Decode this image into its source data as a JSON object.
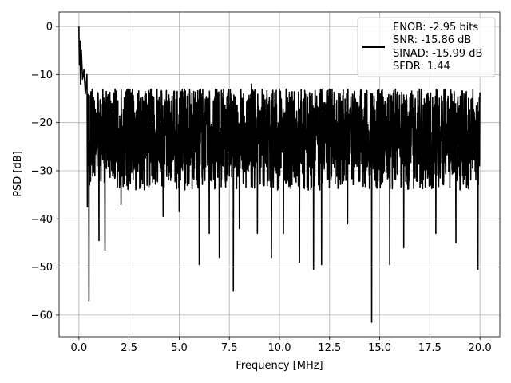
{
  "chart_data": {
    "type": "line",
    "title": "",
    "xlabel": "Frequency [MHz]",
    "ylabel": "PSD [dB]",
    "xlim": [
      -0.99,
      20.99
    ],
    "ylim": [
      -64.5,
      3.0
    ],
    "grid": true,
    "xticks": [
      0.0,
      2.5,
      5.0,
      7.5,
      10.0,
      12.5,
      15.0,
      17.5,
      20.0
    ],
    "xtick_labels": [
      "0.0",
      "2.5",
      "5.0",
      "7.5",
      "10.0",
      "12.5",
      "15.0",
      "17.5",
      "20.0"
    ],
    "yticks": [
      0,
      -10,
      -20,
      -30,
      -40,
      -50,
      -60
    ],
    "ytick_labels": [
      "0",
      "−10",
      "−20",
      "−30",
      "−40",
      "−50",
      "−60"
    ],
    "legend_position": "top-right",
    "legend_lines": [
      "ENOB: -2.95 bits",
      "SNR: -15.86 dB",
      "SINAD: -15.99 dB",
      "SFDR: 1.44"
    ],
    "series": [
      {
        "color": "#000000",
        "x_range": [
          0.0,
          20.0
        ],
        "noise_band": {
          "min": -34,
          "max": -13,
          "mean": -24
        },
        "start_peak": [
          {
            "x": 0.0,
            "y": 0.0
          },
          {
            "x": 0.02,
            "y": -8.0
          },
          {
            "x": 0.05,
            "y": -3.0
          },
          {
            "x": 0.08,
            "y": -12.0
          },
          {
            "x": 0.12,
            "y": -5.0
          },
          {
            "x": 0.18,
            "y": -11.0
          },
          {
            "x": 0.25,
            "y": -9.0
          },
          {
            "x": 0.32,
            "y": -14.0
          },
          {
            "x": 0.4,
            "y": -10.0
          }
        ],
        "notable_dips": [
          {
            "x": 0.5,
            "y": -57.0
          },
          {
            "x": 0.42,
            "y": -37.5
          },
          {
            "x": 1.0,
            "y": -44.5
          },
          {
            "x": 1.3,
            "y": -46.5
          },
          {
            "x": 2.1,
            "y": -37.0
          },
          {
            "x": 4.2,
            "y": -39.5
          },
          {
            "x": 5.0,
            "y": -38.5
          },
          {
            "x": 6.0,
            "y": -49.5
          },
          {
            "x": 6.5,
            "y": -43.0
          },
          {
            "x": 7.0,
            "y": -48.0
          },
          {
            "x": 7.7,
            "y": -55.0
          },
          {
            "x": 8.0,
            "y": -42.0
          },
          {
            "x": 8.9,
            "y": -43.0
          },
          {
            "x": 9.6,
            "y": -48.0
          },
          {
            "x": 10.2,
            "y": -43.0
          },
          {
            "x": 11.0,
            "y": -49.0
          },
          {
            "x": 11.7,
            "y": -50.5
          },
          {
            "x": 12.1,
            "y": -49.5
          },
          {
            "x": 13.4,
            "y": -41.0
          },
          {
            "x": 14.6,
            "y": -61.5
          },
          {
            "x": 15.5,
            "y": -49.5
          },
          {
            "x": 16.2,
            "y": -46.0
          },
          {
            "x": 17.8,
            "y": -43.0
          },
          {
            "x": 18.8,
            "y": -45.0
          },
          {
            "x": 19.9,
            "y": -50.5
          }
        ],
        "notable_peaks": [
          {
            "x": 1.8,
            "y": -13.0
          },
          {
            "x": 3.3,
            "y": -13.5
          },
          {
            "x": 4.5,
            "y": -15.0
          },
          {
            "x": 6.1,
            "y": -14.0
          },
          {
            "x": 7.4,
            "y": -14.5
          },
          {
            "x": 8.6,
            "y": -12.0
          },
          {
            "x": 10.0,
            "y": -13.0
          },
          {
            "x": 12.0,
            "y": -14.0
          },
          {
            "x": 13.1,
            "y": -15.5
          },
          {
            "x": 15.0,
            "y": -14.0
          },
          {
            "x": 16.9,
            "y": -13.5
          },
          {
            "x": 19.6,
            "y": -15.0
          }
        ]
      }
    ]
  }
}
